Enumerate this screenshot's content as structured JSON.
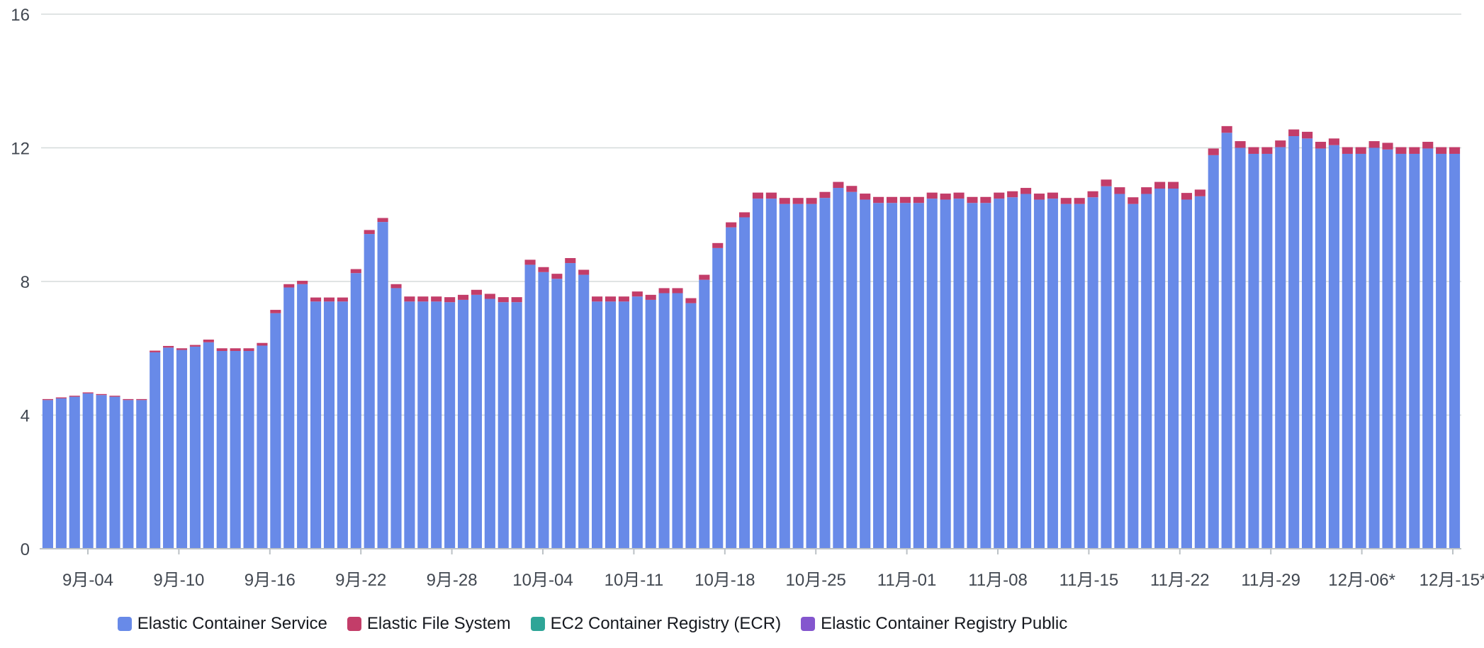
{
  "chart_data": {
    "type": "bar",
    "stacked": true,
    "y_ticks": [
      "0",
      "4",
      "8",
      "12",
      "16"
    ],
    "ylim": [
      0,
      16
    ],
    "grid": true,
    "x_tick_labels": [
      "9月-04",
      "9月-10",
      "9月-16",
      "9月-22",
      "9月-28",
      "10月-04",
      "10月-11",
      "10月-18",
      "10月-25",
      "11月-01",
      "11月-08",
      "11月-15",
      "11月-22",
      "11月-29",
      "12月-06*",
      "12月-15*"
    ],
    "legend_position": "bottom",
    "series": [
      {
        "name": "Elastic Container Service",
        "color": "#688ae8",
        "values": [
          4.45,
          4.5,
          4.55,
          4.65,
          4.6,
          4.55,
          4.45,
          4.45,
          5.88,
          6.02,
          5.95,
          6.05,
          6.18,
          5.92,
          5.92,
          5.92,
          6.08,
          7.05,
          7.82,
          7.92,
          7.4,
          7.4,
          7.4,
          8.25,
          9.42,
          9.78,
          7.8,
          7.4,
          7.4,
          7.4,
          7.38,
          7.45,
          7.6,
          7.48,
          7.38,
          7.38,
          8.5,
          8.28,
          8.08,
          8.55,
          8.2,
          7.4,
          7.4,
          7.4,
          7.55,
          7.45,
          7.65,
          7.65,
          7.35,
          8.05,
          9.0,
          9.62,
          9.92,
          10.48,
          10.48,
          10.32,
          10.32,
          10.32,
          10.5,
          10.8,
          10.68,
          10.45,
          10.35,
          10.35,
          10.35,
          10.35,
          10.48,
          10.45,
          10.48,
          10.35,
          10.35,
          10.48,
          10.52,
          10.62,
          10.45,
          10.48,
          10.32,
          10.32,
          10.52,
          10.85,
          10.62,
          10.32,
          10.62,
          10.78,
          10.78,
          10.45,
          10.55,
          11.78,
          12.45,
          12.0,
          11.82,
          11.82,
          12.02,
          12.35,
          12.28,
          11.98,
          12.08,
          11.82,
          11.82,
          12.0,
          11.95,
          11.82,
          11.82,
          11.98,
          11.82,
          11.82
        ],
        "value_note": ""
      },
      {
        "name": "Elastic File System",
        "color": "#c33d69",
        "values": [
          0.03,
          0.03,
          0.03,
          0.03,
          0.03,
          0.03,
          0.03,
          0.03,
          0.05,
          0.05,
          0.05,
          0.05,
          0.08,
          0.08,
          0.08,
          0.08,
          0.08,
          0.1,
          0.1,
          0.1,
          0.12,
          0.12,
          0.12,
          0.12,
          0.12,
          0.12,
          0.12,
          0.15,
          0.15,
          0.15,
          0.15,
          0.15,
          0.15,
          0.15,
          0.15,
          0.15,
          0.15,
          0.15,
          0.15,
          0.15,
          0.15,
          0.15,
          0.15,
          0.15,
          0.15,
          0.15,
          0.15,
          0.15,
          0.15,
          0.15,
          0.15,
          0.15,
          0.15,
          0.18,
          0.18,
          0.18,
          0.18,
          0.18,
          0.18,
          0.18,
          0.18,
          0.18,
          0.18,
          0.18,
          0.18,
          0.18,
          0.18,
          0.18,
          0.18,
          0.18,
          0.18,
          0.18,
          0.18,
          0.18,
          0.18,
          0.18,
          0.18,
          0.18,
          0.18,
          0.2,
          0.2,
          0.2,
          0.2,
          0.2,
          0.2,
          0.2,
          0.2,
          0.2,
          0.2,
          0.2,
          0.2,
          0.2,
          0.2,
          0.2,
          0.2,
          0.2,
          0.2,
          0.2,
          0.2,
          0.2,
          0.2,
          0.2,
          0.2,
          0.2,
          0.2,
          0.2
        ]
      },
      {
        "name": "EC2 Container Registry (ECR)",
        "color": "#2ea597",
        "values": []
      },
      {
        "name": "Elastic Container Registry Public",
        "color": "#8456ce",
        "values": []
      }
    ]
  }
}
